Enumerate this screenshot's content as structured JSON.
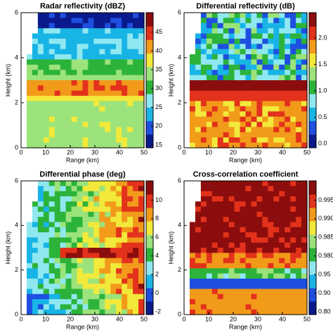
{
  "chart_data": [
    {
      "type": "contour",
      "title": "Radar reflectivity (dBZ)",
      "xlabel": "Range (km)",
      "ylabel": "Height (km)",
      "xlim": [
        0,
        50
      ],
      "xticks": [
        0,
        10,
        20,
        30,
        40,
        50
      ],
      "ylim": [
        0,
        6
      ],
      "yticks": [
        0,
        2,
        4,
        6
      ],
      "cticks": [
        15,
        20,
        25,
        30,
        35,
        40,
        45
      ]
    },
    {
      "type": "contour",
      "title": "Differential reflectivity (dB)",
      "xlabel": "Range (km)",
      "ylabel": "Height (km)",
      "xlim": [
        0,
        50
      ],
      "xticks": [
        0,
        10,
        20,
        30,
        40,
        50
      ],
      "ylim": [
        0,
        6
      ],
      "yticks": [
        0,
        2,
        4,
        6
      ],
      "cticks": [
        {
          "value": 0,
          "label": "0.0"
        },
        {
          "value": 0.5,
          "label": "0.5"
        },
        {
          "value": 1,
          "label": "1.0"
        },
        {
          "value": 1.5,
          "label": "1.5"
        },
        {
          "value": 2,
          "label": "2.0"
        }
      ]
    },
    {
      "type": "contour",
      "title": "Differential phase (deg)",
      "xlabel": "Range (km)",
      "ylabel": "Height (km)",
      "xlim": [
        0,
        50
      ],
      "xticks": [
        0,
        10,
        20,
        30,
        40,
        50
      ],
      "ylim": [
        0,
        6
      ],
      "yticks": [
        0,
        2,
        4,
        6
      ],
      "cticks": [
        -2,
        0,
        2,
        4,
        6,
        8,
        10
      ]
    },
    {
      "type": "contour",
      "title": "Cross-correlation coefficient",
      "xlabel": "Range (km)",
      "ylabel": "Height (km)",
      "xlim": [
        0,
        50
      ],
      "xticks": [
        0,
        10,
        20,
        30,
        40,
        50
      ],
      "ylim": [
        0,
        6
      ],
      "yticks": [
        0,
        2,
        4,
        6
      ],
      "cticks": [
        {
          "value": 0.8,
          "label": "0.80"
        },
        {
          "value": 0.9,
          "label": "0.90"
        },
        {
          "value": 0.95,
          "label": "0.95"
        },
        {
          "value": 0.98,
          "label": "0.980"
        },
        0.985,
        {
          "value": 0.99,
          "label": "0.990"
        },
        0.995
      ]
    }
  ]
}
